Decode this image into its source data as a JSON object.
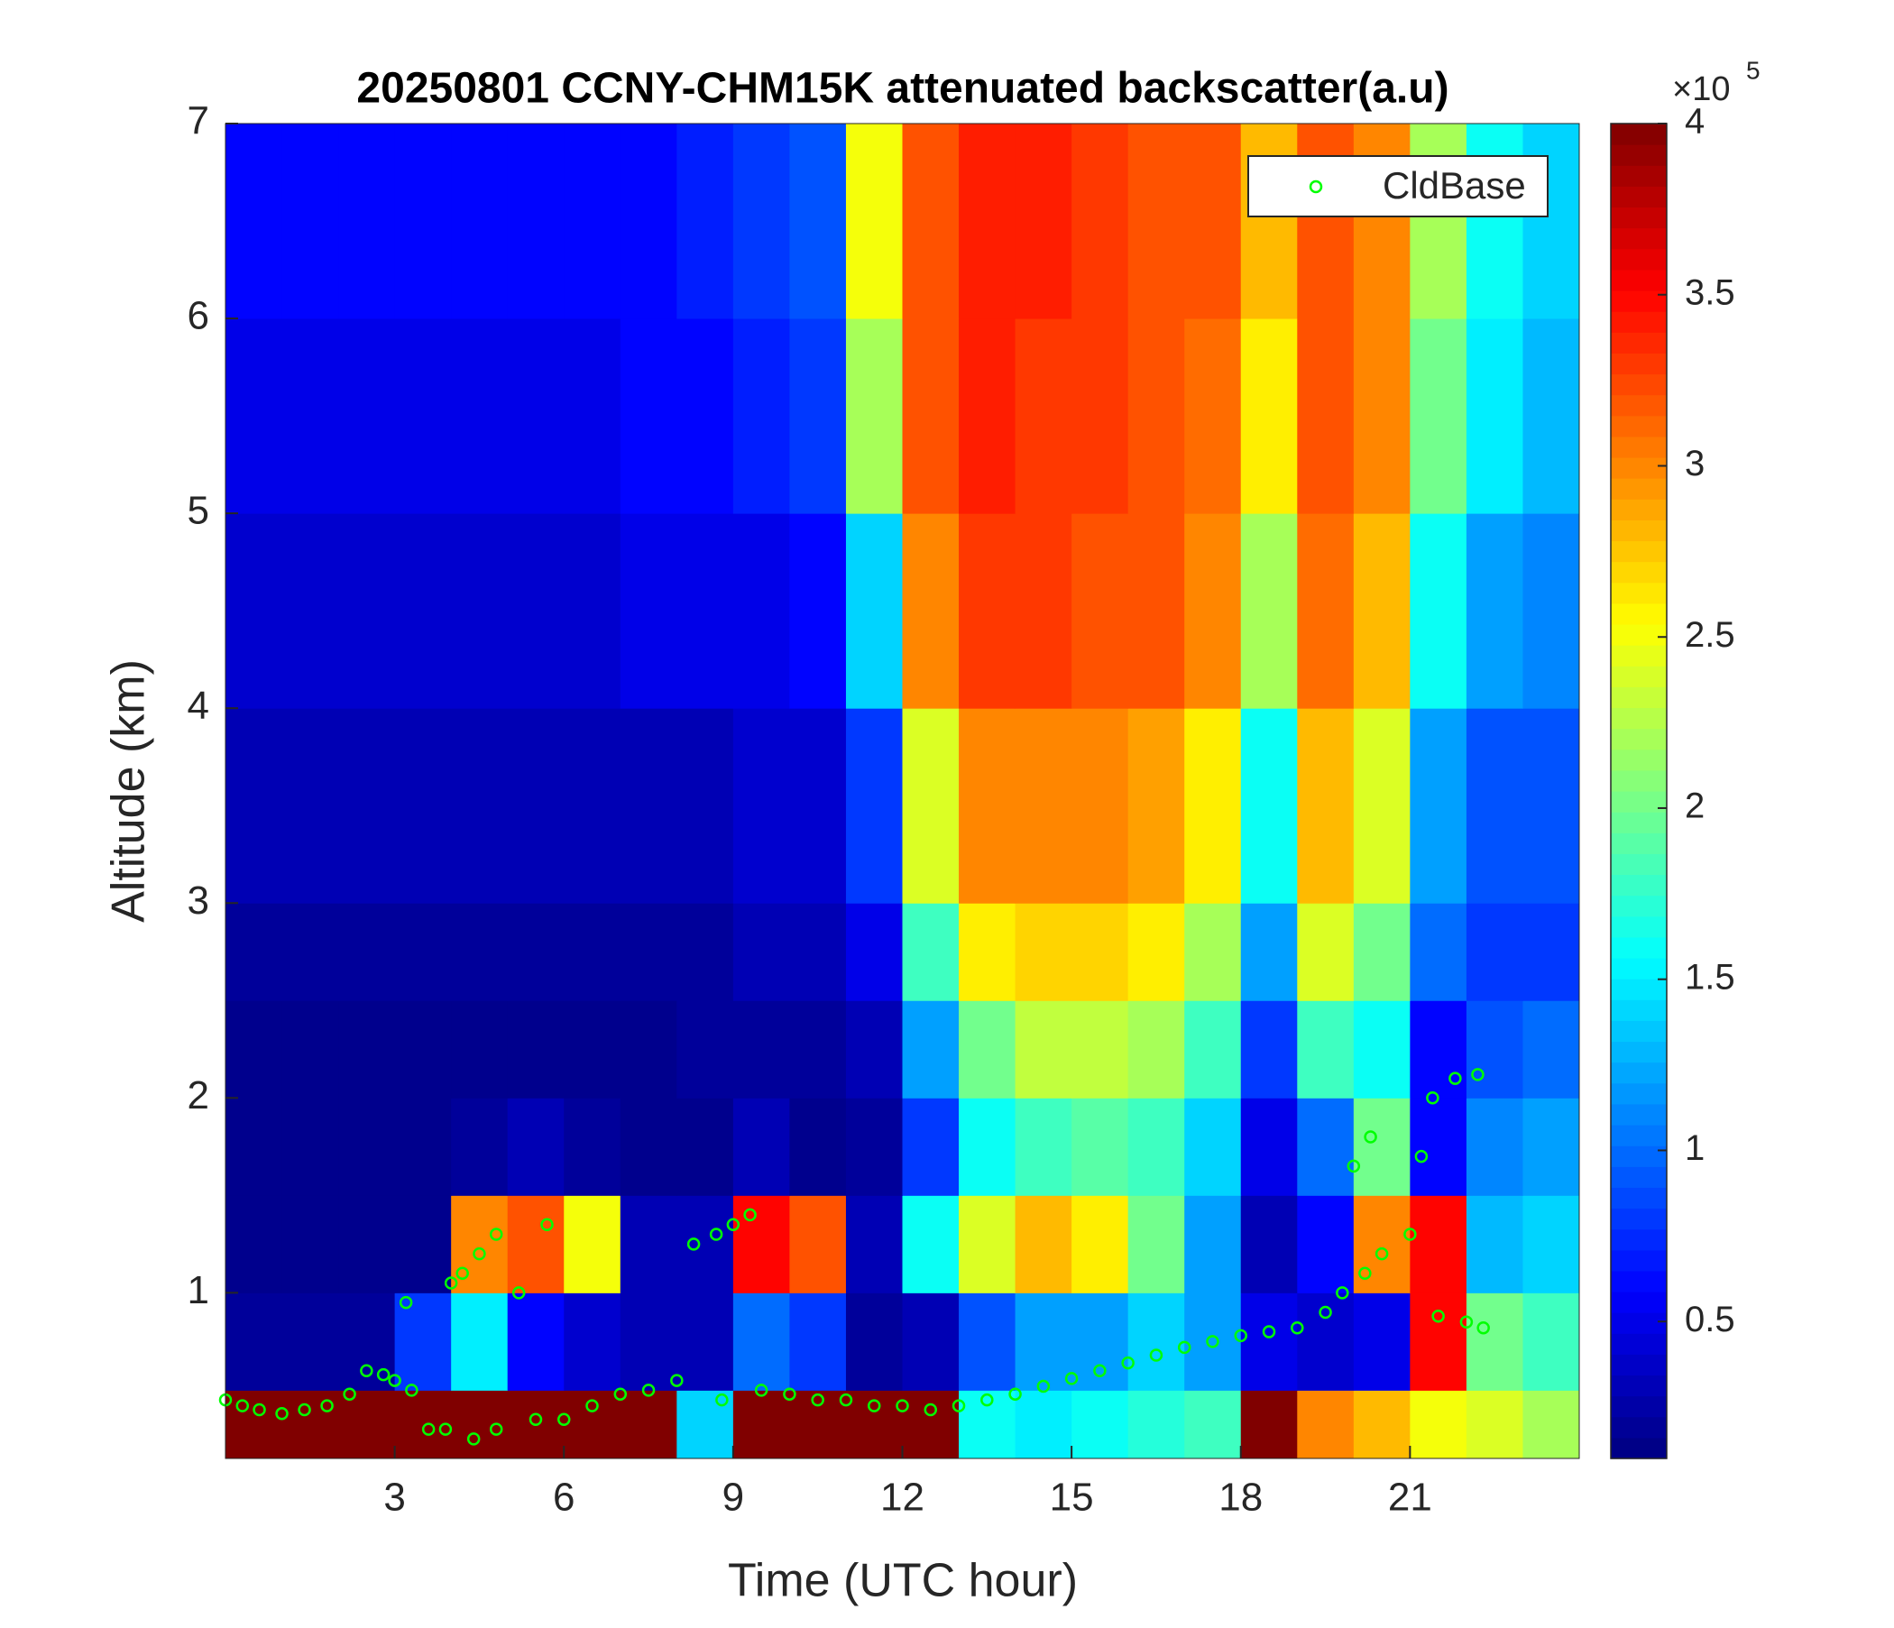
{
  "chart_data": {
    "type": "heatmap",
    "title": "20250801 CCNY-CHM15K attenuated backscatter(a.u)",
    "xlabel": "Time (UTC hour)",
    "ylabel": "Altitude (km)",
    "xlim": [
      0,
      24
    ],
    "ylim": [
      0.15,
      7
    ],
    "xticks": [
      3,
      6,
      9,
      12,
      15,
      18,
      21
    ],
    "yticks": [
      1,
      2,
      3,
      4,
      5,
      6,
      7
    ],
    "clim": [
      0.1,
      4
    ],
    "cticks": [
      0.5,
      1,
      1.5,
      2,
      2.5,
      3,
      3.5,
      4
    ],
    "cmultiplier_base": "×10",
    "cmultiplier_power": 5,
    "colormap": "jet",
    "x_edges": [
      0,
      1,
      2,
      3,
      4,
      5,
      6,
      7,
      8,
      9,
      10,
      11,
      12,
      13,
      14,
      15,
      16,
      17,
      18,
      19,
      20,
      21,
      22,
      23,
      24
    ],
    "y_edges": [
      0.15,
      0.5,
      1,
      1.5,
      2,
      2.5,
      3,
      4,
      5,
      6,
      7
    ],
    "z": [
      [
        4,
        4,
        4,
        4,
        4,
        4,
        4,
        4,
        1.4,
        4,
        4,
        4,
        4,
        1.6,
        1.5,
        1.6,
        1.7,
        1.8,
        4,
        3.0,
        2.8,
        2.5,
        2.4,
        2.2
      ],
      [
        0.2,
        0.2,
        0.2,
        0.8,
        1.5,
        0.6,
        0.4,
        0.3,
        0.3,
        1.0,
        0.8,
        0.2,
        0.3,
        0.9,
        1.2,
        1.2,
        1.4,
        1.2,
        0.5,
        0.4,
        0.5,
        3.5,
        2.0,
        1.8
      ],
      [
        0.15,
        0.15,
        0.15,
        0.15,
        3.0,
        3.2,
        2.5,
        0.3,
        0.3,
        3.5,
        3.2,
        0.3,
        1.6,
        2.4,
        2.8,
        2.6,
        2.0,
        1.2,
        0.3,
        0.6,
        3.0,
        3.5,
        1.3,
        1.4
      ],
      [
        0.15,
        0.15,
        0.15,
        0.15,
        0.2,
        0.3,
        0.2,
        0.15,
        0.15,
        0.3,
        0.15,
        0.2,
        0.8,
        1.6,
        1.8,
        1.9,
        1.8,
        1.4,
        0.5,
        1.0,
        2.0,
        0.6,
        1.1,
        1.2
      ],
      [
        0.15,
        0.15,
        0.15,
        0.15,
        0.15,
        0.15,
        0.15,
        0.15,
        0.2,
        0.2,
        0.2,
        0.3,
        1.2,
        2.0,
        2.3,
        2.3,
        2.2,
        1.8,
        0.8,
        1.8,
        1.6,
        0.6,
        0.9,
        1.0
      ],
      [
        0.2,
        0.2,
        0.2,
        0.2,
        0.2,
        0.2,
        0.2,
        0.2,
        0.2,
        0.3,
        0.3,
        0.5,
        1.8,
        2.6,
        2.7,
        2.7,
        2.6,
        2.2,
        1.2,
        2.4,
        2.0,
        1.0,
        0.8,
        0.8
      ],
      [
        0.3,
        0.3,
        0.3,
        0.3,
        0.3,
        0.3,
        0.3,
        0.3,
        0.3,
        0.4,
        0.4,
        0.8,
        2.4,
        3.0,
        3.0,
        3.0,
        2.9,
        2.6,
        1.6,
        2.8,
        2.4,
        1.2,
        0.9,
        0.9
      ],
      [
        0.4,
        0.4,
        0.4,
        0.4,
        0.4,
        0.4,
        0.4,
        0.5,
        0.5,
        0.5,
        0.6,
        1.4,
        3.0,
        3.3,
        3.3,
        3.2,
        3.2,
        3.0,
        2.2,
        3.1,
        2.8,
        1.6,
        1.2,
        1.1
      ],
      [
        0.5,
        0.5,
        0.5,
        0.5,
        0.5,
        0.5,
        0.5,
        0.6,
        0.6,
        0.7,
        0.8,
        2.2,
        3.2,
        3.4,
        3.3,
        3.3,
        3.2,
        3.1,
        2.6,
        3.2,
        3.0,
        2.0,
        1.5,
        1.3
      ],
      [
        0.6,
        0.6,
        0.6,
        0.6,
        0.6,
        0.6,
        0.6,
        0.6,
        0.7,
        0.8,
        0.9,
        2.5,
        3.2,
        3.4,
        3.4,
        3.3,
        3.2,
        3.2,
        2.8,
        3.2,
        3.0,
        2.2,
        1.6,
        1.4
      ]
    ],
    "legend": "upper right",
    "series": [
      {
        "name": "CldBase",
        "type": "scatter",
        "color": "#00ff00",
        "x": [
          0.0,
          0.3,
          0.6,
          1.0,
          1.4,
          1.8,
          2.2,
          2.5,
          2.8,
          3.0,
          3.2,
          3.3,
          3.6,
          3.9,
          4.0,
          4.2,
          4.5,
          4.8,
          4.4,
          4.8,
          5.2,
          5.5,
          5.7,
          6.0,
          6.5,
          7.0,
          7.5,
          8.0,
          8.3,
          8.7,
          9.0,
          9.3,
          8.8,
          9.5,
          10.0,
          10.5,
          11.0,
          11.5,
          12.0,
          12.5,
          13.0,
          13.5,
          14.0,
          14.5,
          15.0,
          15.5,
          16.0,
          16.5,
          17.0,
          17.5,
          18.0,
          18.5,
          19.0,
          19.5,
          19.8,
          20.2,
          20.5,
          20.0,
          20.3,
          21.0,
          21.2,
          21.4,
          21.8,
          22.2,
          21.5,
          22.0,
          22.3
        ],
        "y": [
          0.45,
          0.42,
          0.4,
          0.38,
          0.4,
          0.42,
          0.48,
          0.6,
          0.58,
          0.55,
          0.95,
          0.5,
          0.3,
          0.3,
          1.05,
          1.1,
          1.2,
          1.3,
          0.25,
          0.3,
          1.0,
          0.35,
          1.35,
          0.35,
          0.42,
          0.48,
          0.5,
          0.55,
          1.25,
          1.3,
          1.35,
          1.4,
          0.45,
          0.5,
          0.48,
          0.45,
          0.45,
          0.42,
          0.42,
          0.4,
          0.42,
          0.45,
          0.48,
          0.52,
          0.56,
          0.6,
          0.64,
          0.68,
          0.72,
          0.75,
          0.78,
          0.8,
          0.82,
          0.9,
          1.0,
          1.1,
          1.2,
          1.65,
          1.8,
          1.3,
          1.7,
          2.0,
          2.1,
          2.12,
          0.88,
          0.85,
          0.82
        ]
      }
    ]
  }
}
